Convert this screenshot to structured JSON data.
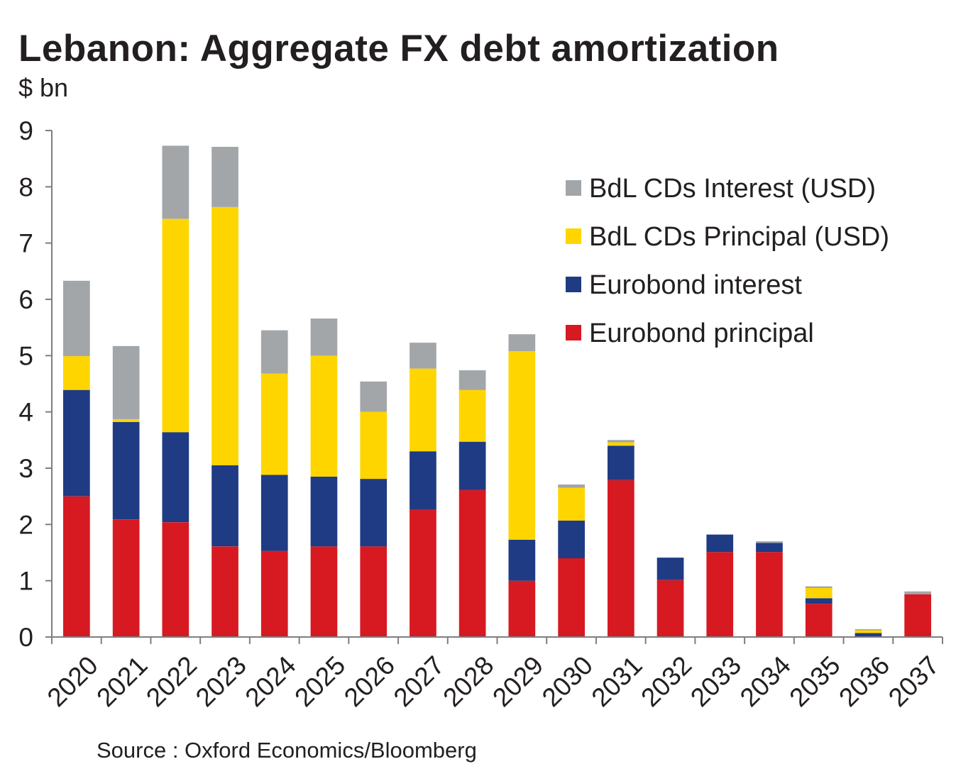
{
  "title": "Lebanon: Aggregate FX debt amortization",
  "unit_label": "$ bn",
  "source": "Source : Oxford Economics/Bloomberg",
  "chart_data": {
    "type": "bar",
    "stacked": true,
    "title": "Lebanon: Aggregate FX debt amortization",
    "xlabel": "",
    "ylabel": "$ bn",
    "ylim": [
      0,
      9
    ],
    "yticks": [
      0,
      1,
      2,
      3,
      4,
      5,
      6,
      7,
      8,
      9
    ],
    "grid": false,
    "legend_position": "top-right",
    "categories": [
      "2020",
      "2021",
      "2022",
      "2023",
      "2024",
      "2025",
      "2026",
      "2027",
      "2028",
      "2029",
      "2030",
      "2031",
      "2032",
      "2033",
      "2034",
      "2035",
      "2036",
      "2037"
    ],
    "series": [
      {
        "name": "Eurobond principal",
        "color": "#d71921",
        "values": [
          2.5,
          2.09,
          2.04,
          1.61,
          1.53,
          1.61,
          1.61,
          2.26,
          2.61,
          1.0,
          1.4,
          2.79,
          1.01,
          1.51,
          1.51,
          0.59,
          0.01,
          0.76
        ]
      },
      {
        "name": "Eurobond interest",
        "color": "#1f3b84",
        "values": [
          1.89,
          1.73,
          1.6,
          1.44,
          1.35,
          1.24,
          1.2,
          1.04,
          0.86,
          0.73,
          0.67,
          0.61,
          0.4,
          0.31,
          0.16,
          0.1,
          0.06,
          0.0
        ]
      },
      {
        "name": "BdL CDs Principal (USD)",
        "color": "#ffd500",
        "values": [
          0.6,
          0.05,
          3.79,
          4.59,
          1.8,
          2.15,
          1.19,
          1.47,
          0.92,
          3.35,
          0.58,
          0.06,
          0.0,
          0.0,
          0.0,
          0.18,
          0.05,
          0.0
        ]
      },
      {
        "name": "BdL CDs Interest (USD)",
        "color": "#a3a6a9",
        "values": [
          1.34,
          1.3,
          1.3,
          1.07,
          0.77,
          0.66,
          0.54,
          0.46,
          0.35,
          0.3,
          0.06,
          0.04,
          0.0,
          0.0,
          0.03,
          0.03,
          0.02,
          0.05
        ]
      }
    ],
    "legend": [
      "BdL CDs Interest (USD)",
      "BdL CDs Principal (USD)",
      "Eurobond interest",
      "Eurobond principal"
    ]
  }
}
